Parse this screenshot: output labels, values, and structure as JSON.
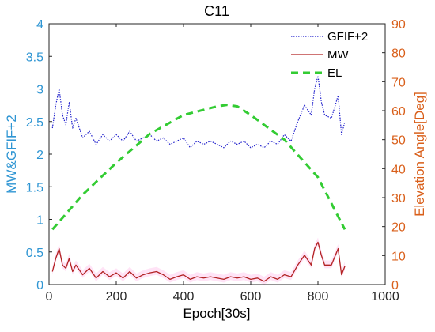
{
  "colors": {
    "left_axis": "#2E95D3",
    "right_axis": "#D95F1A",
    "gfif2": "#1F1FCC",
    "mw": "#B22222",
    "el": "#33CC33",
    "noise": "#FF66CC",
    "axes": "#262626"
  },
  "chart_data": {
    "type": "line",
    "title": "C11",
    "xlabel": "Epoch[30s]",
    "ylabel_left": "MW&GFIF+2",
    "ylabel_right": "Elevation Angle[Deg]",
    "xlim": [
      0,
      1000
    ],
    "ylim_left": [
      0,
      4
    ],
    "ylim_right": [
      0,
      90
    ],
    "x_ticks": [
      0,
      200,
      400,
      600,
      800,
      1000
    ],
    "y_ticks_left": [
      0,
      0.5,
      1,
      1.5,
      2,
      2.5,
      3,
      3.5,
      4
    ],
    "y_ticks_right": [
      0,
      10,
      20,
      30,
      40,
      50,
      60,
      70,
      80,
      90
    ],
    "x_tick_labels": [
      "0",
      "200",
      "400",
      "600",
      "800",
      "1000"
    ],
    "y_tick_labels_left": [
      "0",
      "0.5",
      "1",
      "1.5",
      "2",
      "2.5",
      "3",
      "3.5",
      "4"
    ],
    "y_tick_labels_right": [
      "0",
      "10",
      "20",
      "30",
      "40",
      "50",
      "60",
      "70",
      "80",
      "90"
    ],
    "legend_position": "top-right",
    "series": [
      {
        "name": "GFIF+2",
        "axis": "left",
        "style": "dotted",
        "x": [
          10,
          20,
          30,
          40,
          50,
          60,
          70,
          80,
          100,
          120,
          140,
          160,
          180,
          200,
          220,
          240,
          260,
          280,
          300,
          320,
          340,
          360,
          380,
          400,
          420,
          440,
          460,
          480,
          500,
          520,
          540,
          560,
          580,
          600,
          620,
          640,
          660,
          680,
          700,
          720,
          740,
          760,
          780,
          790,
          800,
          810,
          820,
          840,
          860,
          870,
          880
        ],
        "y": [
          2.4,
          2.75,
          3.0,
          2.6,
          2.45,
          2.8,
          2.4,
          2.55,
          2.25,
          2.35,
          2.15,
          2.3,
          2.2,
          2.3,
          2.2,
          2.35,
          2.2,
          2.25,
          2.3,
          2.2,
          2.25,
          2.15,
          2.2,
          2.25,
          2.1,
          2.2,
          2.15,
          2.2,
          2.15,
          2.1,
          2.2,
          2.15,
          2.2,
          2.1,
          2.15,
          2.1,
          2.2,
          2.15,
          2.3,
          2.2,
          2.5,
          2.75,
          2.6,
          3.0,
          3.2,
          2.8,
          2.6,
          2.55,
          2.9,
          2.3,
          2.5
        ]
      },
      {
        "name": "MW",
        "axis": "left",
        "style": "solid",
        "x": [
          10,
          20,
          30,
          40,
          50,
          60,
          70,
          80,
          100,
          120,
          140,
          160,
          180,
          200,
          220,
          240,
          260,
          280,
          300,
          320,
          340,
          360,
          380,
          400,
          420,
          440,
          460,
          480,
          500,
          520,
          540,
          560,
          580,
          600,
          620,
          640,
          660,
          680,
          700,
          720,
          740,
          760,
          780,
          790,
          800,
          810,
          820,
          840,
          860,
          870,
          880
        ],
        "y": [
          0.2,
          0.4,
          0.55,
          0.3,
          0.25,
          0.4,
          0.2,
          0.3,
          0.15,
          0.25,
          0.1,
          0.2,
          0.12,
          0.18,
          0.1,
          0.2,
          0.1,
          0.15,
          0.18,
          0.2,
          0.15,
          0.08,
          0.12,
          0.15,
          0.08,
          0.12,
          0.1,
          0.12,
          0.1,
          0.08,
          0.12,
          0.1,
          0.12,
          0.08,
          0.1,
          0.05,
          0.12,
          0.08,
          0.15,
          0.12,
          0.3,
          0.45,
          0.3,
          0.55,
          0.65,
          0.45,
          0.3,
          0.3,
          0.55,
          0.15,
          0.28
        ]
      },
      {
        "name": "EL",
        "axis": "right",
        "style": "dashed",
        "x": [
          10,
          100,
          200,
          300,
          400,
          500,
          530,
          560,
          600,
          700,
          800,
          880
        ],
        "y": [
          19,
          31,
          42,
          52,
          58.5,
          61.5,
          62,
          61.5,
          58.5,
          50,
          37,
          19
        ]
      }
    ]
  }
}
